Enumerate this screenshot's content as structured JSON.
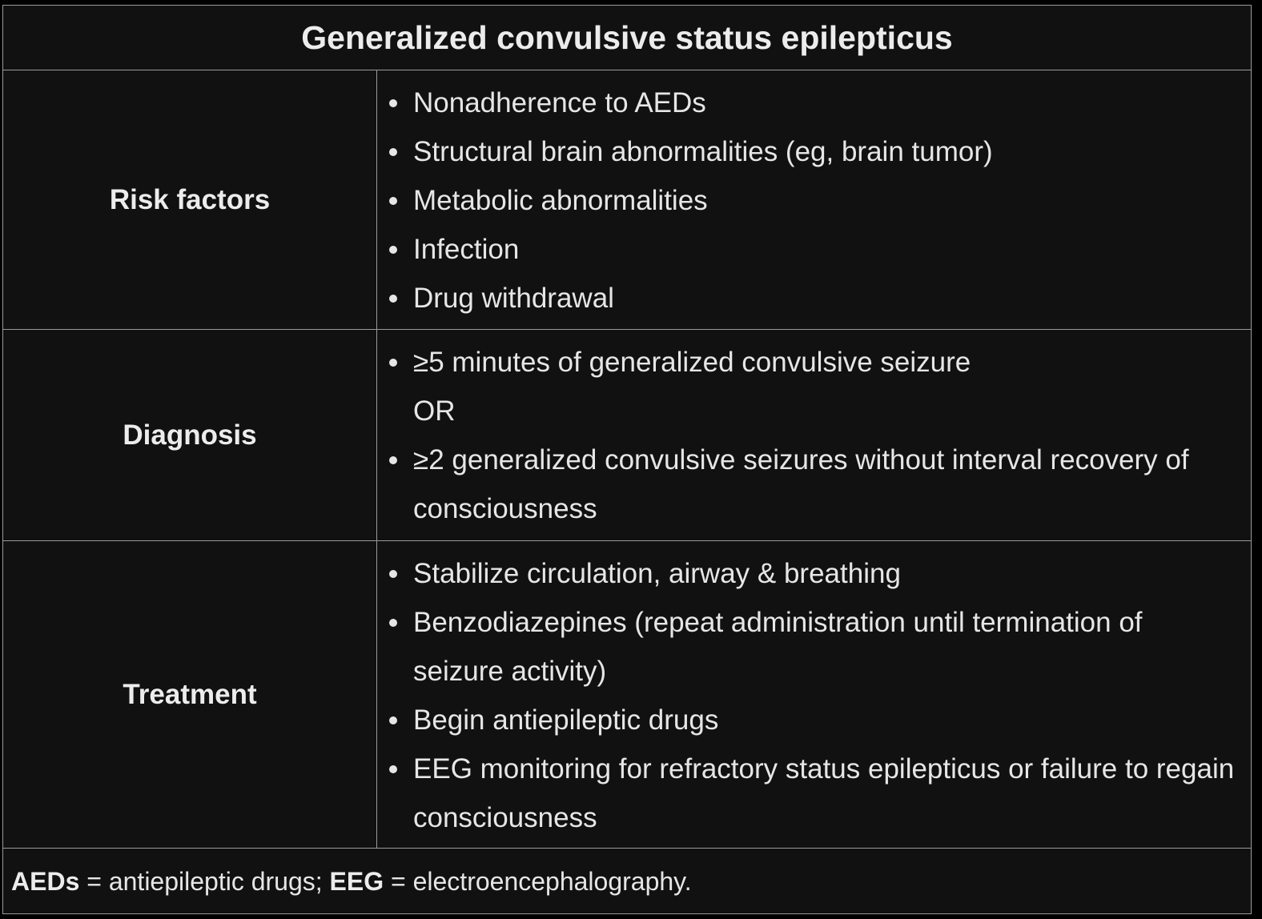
{
  "title": "Generalized convulsive status epilepticus",
  "rows": {
    "risk": {
      "label": "Risk factors",
      "items": [
        "Nonadherence to AEDs",
        "Structural brain abnormalities (eg, brain tumor)",
        "Metabolic abnormalities",
        "Infection",
        "Drug withdrawal"
      ]
    },
    "diagnosis": {
      "label": "Diagnosis",
      "item1": "≥5 minutes of generalized convulsive seizure",
      "connector": "OR",
      "item2": "≥2 generalized convulsive seizures without interval recovery of consciousness"
    },
    "treatment": {
      "label": "Treatment",
      "items": [
        "Stabilize circulation, airway & breathing",
        "Benzodiazepines (repeat administration until termination of seizure activity)",
        "Begin antiepileptic drugs",
        "EEG monitoring for refractory status epilepticus or failure to regain consciousness"
      ]
    }
  },
  "footer": {
    "abbr1": "AEDs",
    "def1": " = antiepileptic drugs; ",
    "abbr2": "EEG",
    "def2": " = electroencephalography."
  }
}
